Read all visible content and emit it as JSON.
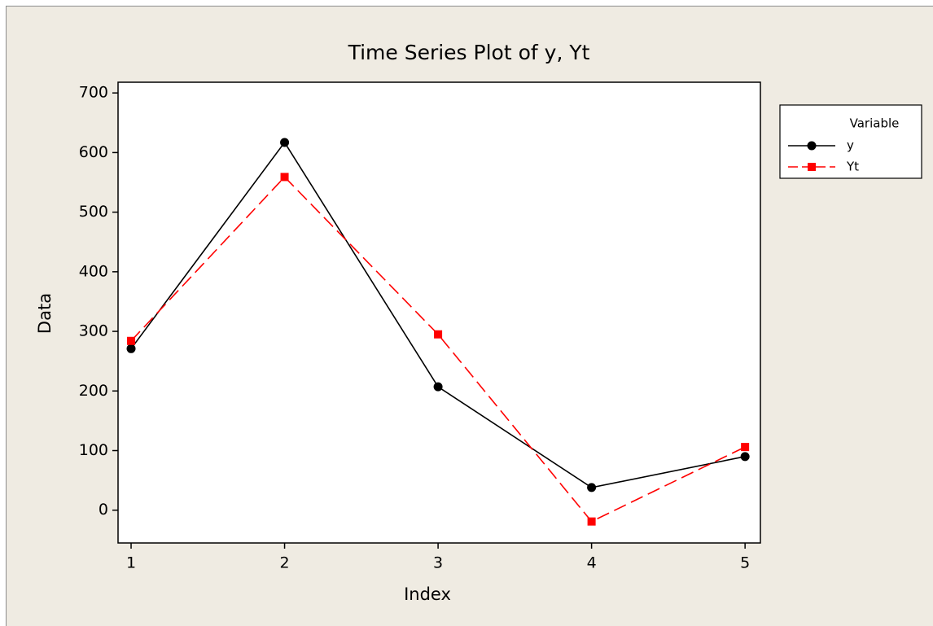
{
  "chart_data": {
    "type": "line",
    "title": "Time Series Plot of y, Yt",
    "x_label": "Index",
    "y_label": "Data",
    "x": [
      1,
      2,
      3,
      4,
      5
    ],
    "series": [
      {
        "name": "y",
        "color": "#000000",
        "marker": "circle",
        "dash": false,
        "values": [
          271,
          617,
          207,
          38,
          90
        ]
      },
      {
        "name": "Yt",
        "color": "#ff0000",
        "marker": "square",
        "dash": true,
        "values": [
          284,
          559,
          295,
          -19,
          106
        ]
      }
    ],
    "xlim": [
      0.915,
      5.1
    ],
    "xticks": [
      1,
      2,
      3,
      4,
      5
    ],
    "ylim": [
      -55,
      718
    ],
    "yticks": [
      0,
      100,
      200,
      300,
      400,
      500,
      600,
      700
    ],
    "legend_title": "Variable",
    "legend_position": "right"
  }
}
